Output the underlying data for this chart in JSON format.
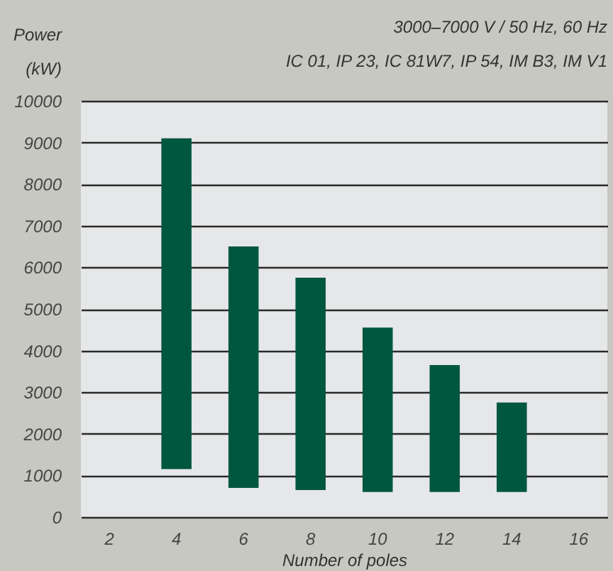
{
  "chart_data": {
    "type": "bar",
    "title": "3000–7000 V / 50 Hz, 60 Hz",
    "subtitle": "IC 01, IP 23, IC 81W7, IP 54, IM B3, IM V1",
    "xlabel": "Number of poles",
    "ylabel": "Power (kW)",
    "categories": [
      "2",
      "4",
      "6",
      "8",
      "10",
      "12",
      "14",
      "16"
    ],
    "series": [
      {
        "color": "#00573f",
        "values": [
          null,
          7950,
          5800,
          5100,
          3950,
          3050,
          2150,
          null
        ],
        "base": [
          null,
          1150,
          700,
          650,
          600,
          600,
          600,
          null
        ]
      }
    ],
    "ylim": [
      0,
      10000
    ],
    "yticks": [
      0,
      1000,
      2000,
      3000,
      4000,
      5000,
      6000,
      7000,
      8000,
      9000,
      10000
    ],
    "grid": "y"
  }
}
